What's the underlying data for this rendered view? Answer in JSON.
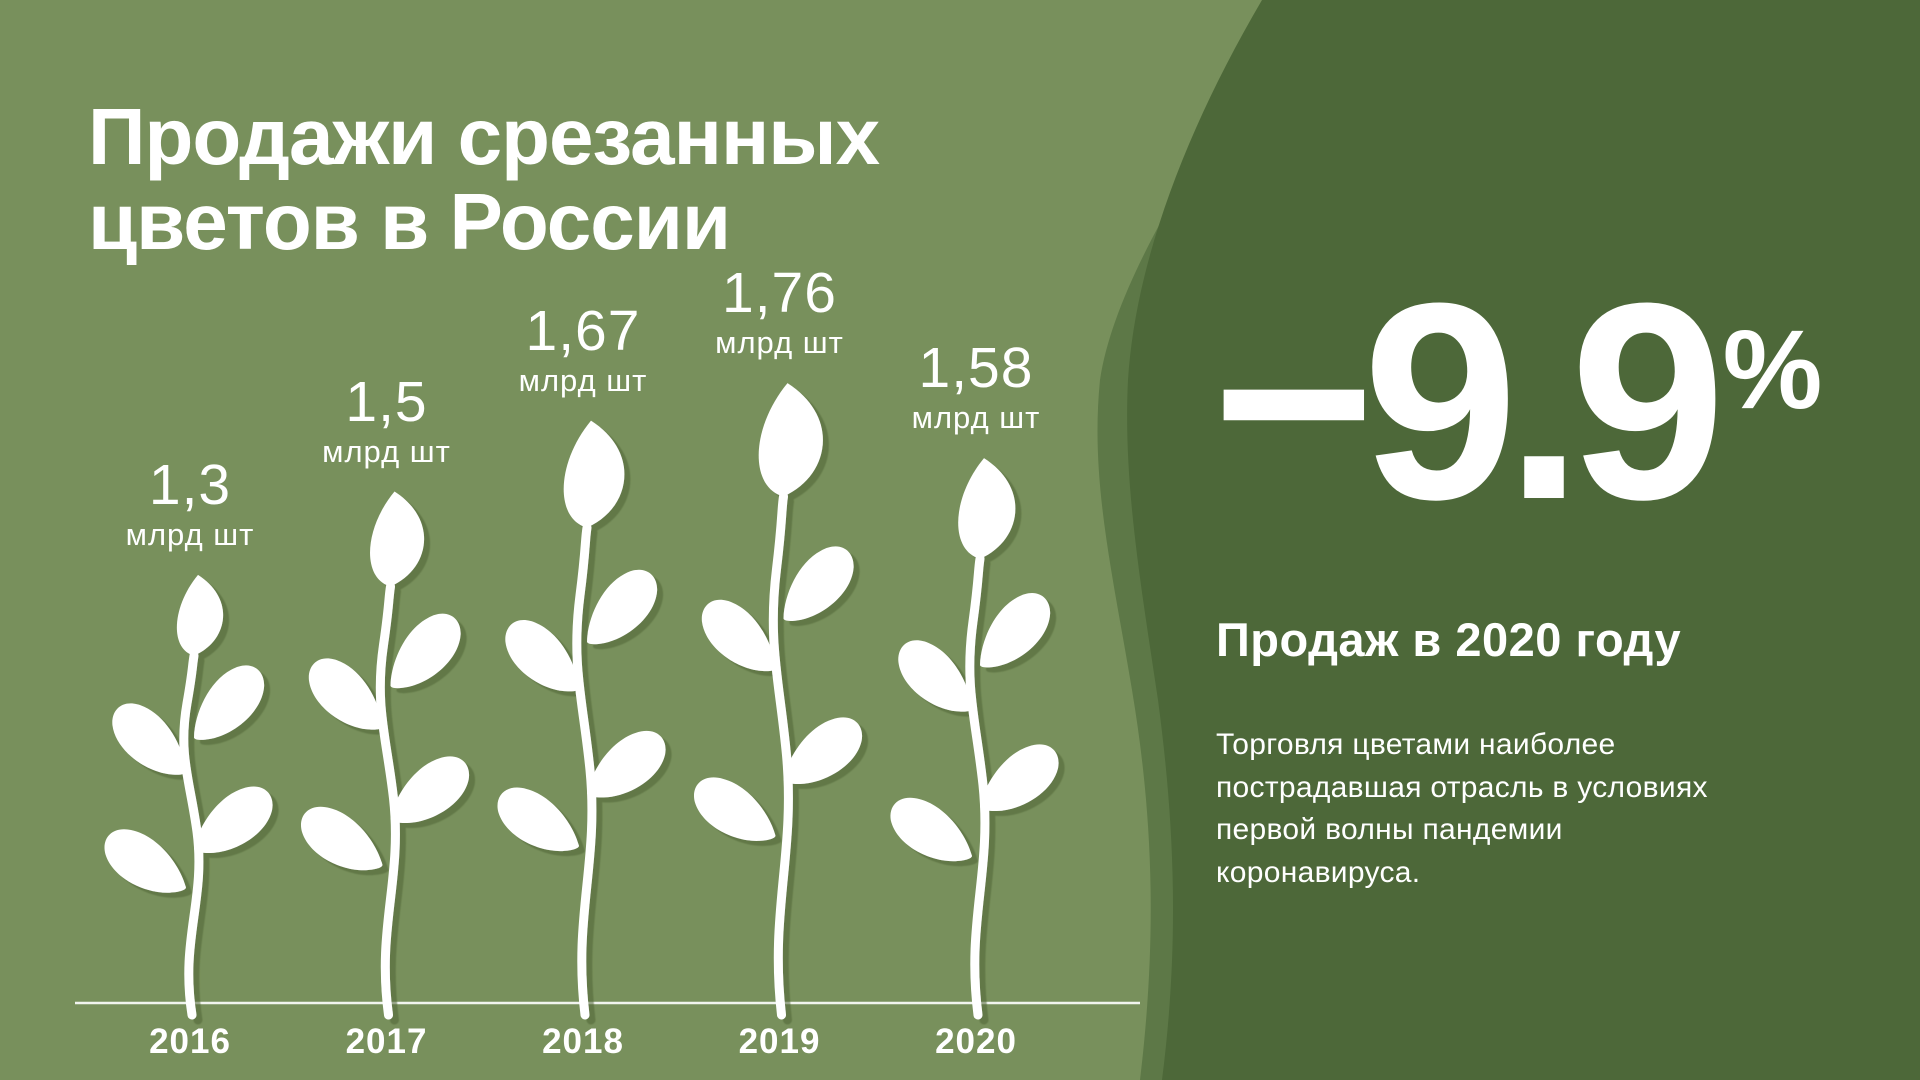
{
  "title": {
    "line1": "Продажи срезанных",
    "line2": "цветов в России"
  },
  "chart_data": {
    "type": "pictorial-bar",
    "title": "Продажи срезанных цветов в России",
    "categories": [
      "2016",
      "2017",
      "2018",
      "2019",
      "2020"
    ],
    "values": [
      1.3,
      1.5,
      1.67,
      1.76,
      1.58
    ],
    "value_labels": [
      "1,3",
      "1,5",
      "1,67",
      "1,76",
      "1,58"
    ],
    "unit": "млрд шт",
    "xlabel": "",
    "ylabel": "",
    "legend": "none",
    "grid": "off",
    "note": "each year is drawn as a white flower whose stem height encodes the value"
  },
  "stat_panel": {
    "value": "−9.9",
    "unit": "%",
    "caption": "Продаж в 2020 году",
    "description": "Торговля цветами наиболее пострадавшая отрасль в условиях первой волны пандемии коронавируса."
  },
  "colors": {
    "background": "#78905c",
    "panel_mid": "#5d7847",
    "panel_dark": "#4d6839",
    "flower": "#ffffff",
    "flower_shadow": "#4f6339",
    "text": "#ffffff"
  }
}
